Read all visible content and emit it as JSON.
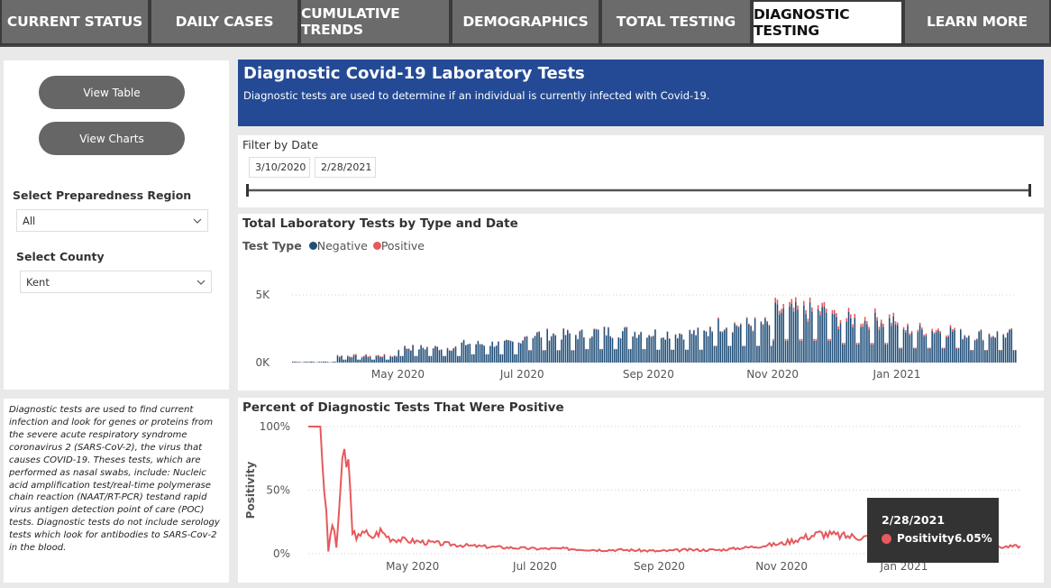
{
  "nav": {
    "tabs": [
      {
        "label": "CURRENT STATUS",
        "active": false
      },
      {
        "label": "DAILY CASES",
        "active": false
      },
      {
        "label": "CUMULATIVE TRENDS",
        "active": false
      },
      {
        "label": "DEMOGRAPHICS",
        "active": false
      },
      {
        "label": "TOTAL TESTING",
        "active": false
      },
      {
        "label": "DIAGNOSTIC TESTING",
        "active": true
      },
      {
        "label": "LEARN MORE",
        "active": false
      }
    ]
  },
  "sidebar": {
    "view_table_label": "View Table",
    "view_charts_label": "View Charts",
    "region_label": "Select Preparedness Region",
    "region_value": "All",
    "county_label": "Select County",
    "county_value": "Kent",
    "description": "Diagnostic tests are used to find current infection and look for genes or proteins from the severe acute respiratory syndrome coronavirus 2 (SARS-CoV-2), the virus that causes COVID-19. Theses tests, which are performed as nasal swabs, include: Nucleic acid amplification test/real-time polymerase chain reaction (NAAT/RT-PCR) testand rapid virus antigen detection point of care (POC) tests.  Diagnostic tests do not include serology tests which look for antibodies to SARS-Cov-2 in the blood."
  },
  "banner": {
    "title": "Diagnostic Covid-19 Laboratory Tests",
    "subtitle": "Diagnostic tests are used to determine if an individual is currently infected with Covid-19."
  },
  "filter": {
    "label": "Filter by Date",
    "start_date": "3/10/2020",
    "end_date": "2/28/2021",
    "range_fraction": [
      0,
      1
    ]
  },
  "colors": {
    "negative": "#1f4e79",
    "positive": "#e6595d",
    "banner": "#244a95"
  },
  "tooltip": {
    "date": "2/28/2021",
    "label": "Positivity",
    "value": "6.05%"
  },
  "chart_data": [
    {
      "type": "bar",
      "stacked": true,
      "title": "Total Laboratory Tests by Type and Date",
      "legend_title": "Test Type",
      "legend_position": "top-left",
      "x_tick_labels": [
        "May 2020",
        "Jul 2020",
        "Sep 2020",
        "Nov 2020",
        "Jan 2021"
      ],
      "y_tick_labels": [
        "0K",
        "5K"
      ],
      "x_range": [
        "2020-03-10",
        "2021-02-28"
      ],
      "ylim": [
        0,
        6000
      ],
      "series": [
        {
          "name": "Negative",
          "monthly_typical_daily_values": {
            "2020-03": 60,
            "2020-04": 450,
            "2020-05": 1050,
            "2020-06": 1350,
            "2020-07": 2000,
            "2020-08": 2200,
            "2020-09": 2100,
            "2020-10": 2700,
            "2020-11": 3600,
            "2020-12": 3000,
            "2021-01": 2300,
            "2021-02": 2000
          }
        },
        {
          "name": "Positive",
          "monthly_typical_daily_values": {
            "2020-03": 10,
            "2020-04": 60,
            "2020-05": 40,
            "2020-06": 20,
            "2020-07": 40,
            "2020-08": 40,
            "2020-09": 30,
            "2020-10": 80,
            "2020-11": 280,
            "2020-12": 250,
            "2021-01": 150,
            "2021-02": 70
          }
        }
      ],
      "peak": {
        "date": "2020-11-20",
        "value": 5900
      }
    },
    {
      "type": "line",
      "title": "Percent of Diagnostic Tests That Were Positive",
      "ylabel": "Positivity",
      "y_tick_labels": [
        "0%",
        "50%",
        "100%"
      ],
      "x_tick_labels": [
        "May 2020",
        "Jul 2020",
        "Sep 2020",
        "Nov 2020",
        "Jan 2021"
      ],
      "ylim": [
        0,
        100
      ],
      "x_range": [
        "2020-03-10",
        "2021-02-28"
      ],
      "series": [
        {
          "name": "Positivity",
          "points": [
            [
              "2020-03-10",
              100
            ],
            [
              "2020-03-14",
              100
            ],
            [
              "2020-03-16",
              100
            ],
            [
              "2020-03-18",
              55
            ],
            [
              "2020-03-20",
              2
            ],
            [
              "2020-03-22",
              25
            ],
            [
              "2020-03-24",
              5
            ],
            [
              "2020-03-26",
              50
            ],
            [
              "2020-03-28",
              75
            ],
            [
              "2020-03-30",
              70
            ],
            [
              "2020-04-01",
              20
            ],
            [
              "2020-04-03",
              10
            ],
            [
              "2020-04-06",
              20
            ],
            [
              "2020-04-10",
              12
            ],
            [
              "2020-04-15",
              18
            ],
            [
              "2020-04-20",
              12
            ],
            [
              "2020-05-01",
              10
            ],
            [
              "2020-05-15",
              8
            ],
            [
              "2020-06-01",
              6
            ],
            [
              "2020-06-15",
              5
            ],
            [
              "2020-07-01",
              4
            ],
            [
              "2020-07-15",
              4
            ],
            [
              "2020-08-01",
              3
            ],
            [
              "2020-08-15",
              3
            ],
            [
              "2020-09-01",
              2
            ],
            [
              "2020-09-15",
              3
            ],
            [
              "2020-10-01",
              3
            ],
            [
              "2020-10-15",
              5
            ],
            [
              "2020-11-01",
              8
            ],
            [
              "2020-11-10",
              12
            ],
            [
              "2020-11-20",
              16
            ],
            [
              "2020-12-01",
              14
            ],
            [
              "2020-12-15",
              13
            ],
            [
              "2021-01-01",
              10
            ],
            [
              "2021-01-15",
              8
            ],
            [
              "2021-02-01",
              6
            ],
            [
              "2021-02-15",
              5
            ],
            [
              "2021-02-28",
              6.05
            ]
          ]
        }
      ]
    }
  ]
}
